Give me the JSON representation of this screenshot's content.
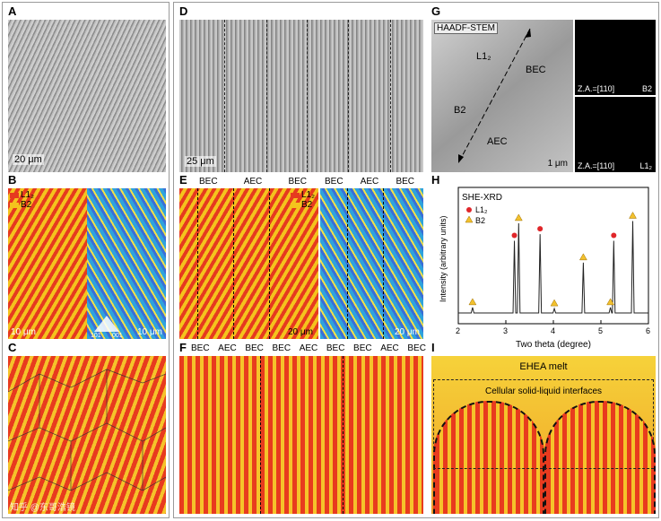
{
  "panels": {
    "A": {
      "label": "A",
      "scale": "20 μm"
    },
    "B": {
      "label": "B",
      "legend": [
        "L1₂",
        "B2"
      ],
      "scale_left": "10 μm",
      "scale_right": "10 μm",
      "ipf_101": "101",
      "ipf_001": "001"
    },
    "C": {
      "label": "C"
    },
    "D": {
      "label": "D",
      "scale": "25 μm"
    },
    "E": {
      "label": "E",
      "regions": [
        "BEC",
        "AEC",
        "BEC",
        "BEC",
        "AEC",
        "BEC"
      ],
      "legend": [
        "L1₂",
        "B2"
      ],
      "scale_left": "20 μm",
      "scale_right": "20 μm"
    },
    "F": {
      "label": "F",
      "regions": [
        "BEC",
        "AEC",
        "BEC",
        "BEC",
        "AEC",
        "BEC",
        "BEC",
        "AEC",
        "BEC"
      ]
    },
    "G": {
      "label": "G",
      "title": "HAADF-STEM",
      "phases": [
        "L1₂",
        "BEC",
        "B2",
        "AEC"
      ],
      "scale": "1 μm",
      "za_top": "Z.A.=[110]",
      "phase_top": "B2",
      "za_bottom": "Z.A.=[110]",
      "phase_bottom": "L1₂"
    },
    "H": {
      "label": "H"
    },
    "I": {
      "label": "I",
      "melt": "EHEA melt",
      "interface": "Cellular solid-liquid interfaces"
    }
  },
  "chart_data": {
    "type": "line",
    "title": "SHE-XRD",
    "xlabel": "Two theta (degree)",
    "ylabel": "Intensity (arbitrary units)",
    "xlim": [
      2,
      6
    ],
    "xticks": [
      "2",
      "3",
      "4",
      "5",
      "6"
    ],
    "legend": [
      "L1₂",
      "B2"
    ],
    "peaks": [
      {
        "x": 2.3,
        "y": 0.05,
        "phase": "B2"
      },
      {
        "x": 3.18,
        "y": 0.66,
        "phase": "L1₂"
      },
      {
        "x": 3.27,
        "y": 0.82,
        "phase": "B2"
      },
      {
        "x": 3.72,
        "y": 0.72,
        "phase": "L1₂"
      },
      {
        "x": 4.02,
        "y": 0.04,
        "phase": "B2"
      },
      {
        "x": 4.63,
        "y": 0.46,
        "phase": "B2"
      },
      {
        "x": 5.2,
        "y": 0.05,
        "phase": "B2"
      },
      {
        "x": 5.27,
        "y": 0.66,
        "phase": "L1₂"
      },
      {
        "x": 5.67,
        "y": 0.84,
        "phase": "B2"
      }
    ],
    "colors": {
      "L1₂": "#e0262a",
      "B2": "#f2c12e"
    },
    "grid": false
  },
  "watermark": "知乎 @东哥浩镜"
}
